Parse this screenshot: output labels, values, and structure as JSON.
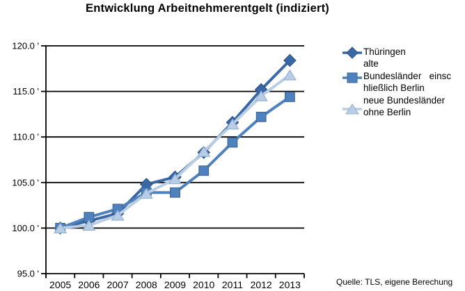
{
  "title": "Entwicklung Arbeitnehmerentgelt (indiziert)",
  "source": "Quelle: TLS, eigene Berechung",
  "chart_data": {
    "type": "line",
    "title": "Entwicklung Arbeitnehmerentgelt (indiziert)",
    "x_labels": [
      "2005",
      "2006",
      "2007",
      "2008",
      "2009",
      "2010",
      "2011",
      "2012",
      "2013"
    ],
    "y_ticks": [
      120,
      115,
      110,
      105,
      100,
      95
    ],
    "y_tick_labels": [
      "120.0 '",
      "115.0 '",
      "110.0 '",
      "105.0 '",
      "100.0 '",
      "95.0 '"
    ],
    "ylim": [
      95,
      120
    ],
    "grid": true,
    "legend_position": "right",
    "series": [
      {
        "name": "Thüringen",
        "marker": "diamond",
        "color": "#3A67A5",
        "border": "#2F5486",
        "values": [
          100.0,
          100.8,
          101.6,
          104.8,
          105.6,
          108.3,
          111.6,
          115.2,
          118.4
        ]
      },
      {
        "name": "alte Bundesländer einschließlich Berlin",
        "marker": "square",
        "color": "#4F81BD",
        "border": "#3D689A",
        "values": [
          100.0,
          101.2,
          102.1,
          103.9,
          103.9,
          106.3,
          109.4,
          112.2,
          114.4
        ]
      },
      {
        "name": "neue Bundesländer ohne Berlin",
        "marker": "triangle",
        "color": "#B9CDE5",
        "border": "#92B1D5",
        "values": [
          100.0,
          100.3,
          101.4,
          103.8,
          105.4,
          108.4,
          111.4,
          114.5,
          116.8
        ]
      }
    ]
  },
  "legend": {
    "display_lines": [
      "Thüringen",
      "alte",
      "Bundesländer   einsc",
      "hließlich Berlin",
      "neue Bundesländer",
      "ohne Berlin"
    ]
  }
}
